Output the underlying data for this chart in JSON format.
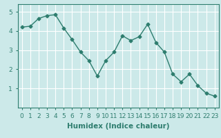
{
  "x": [
    0,
    1,
    2,
    3,
    4,
    5,
    6,
    7,
    8,
    9,
    10,
    11,
    12,
    13,
    14,
    15,
    16,
    17,
    18,
    19,
    20,
    21,
    22,
    23
  ],
  "y": [
    4.2,
    4.25,
    4.65,
    4.8,
    4.85,
    4.15,
    3.55,
    2.9,
    2.45,
    1.65,
    2.45,
    2.9,
    3.75,
    3.5,
    3.7,
    4.35,
    3.4,
    2.9,
    1.75,
    1.35,
    1.75,
    1.15,
    0.75,
    0.6
  ],
  "line_color": "#2e7d6e",
  "marker": "D",
  "marker_size": 2.5,
  "linewidth": 1.0,
  "xlabel": "Humidex (Indice chaleur)",
  "xlim": [
    -0.5,
    23.5
  ],
  "ylim": [
    0,
    5.4
  ],
  "xticks": [
    0,
    1,
    2,
    3,
    4,
    5,
    6,
    7,
    8,
    9,
    10,
    11,
    12,
    13,
    14,
    15,
    16,
    17,
    18,
    19,
    20,
    21,
    22,
    23
  ],
  "yticks": [
    1,
    2,
    3,
    4,
    5
  ],
  "background_color": "#cce9e9",
  "grid_color": "#ffffff",
  "tick_label_fontsize": 6.5,
  "xlabel_fontsize": 7.5
}
